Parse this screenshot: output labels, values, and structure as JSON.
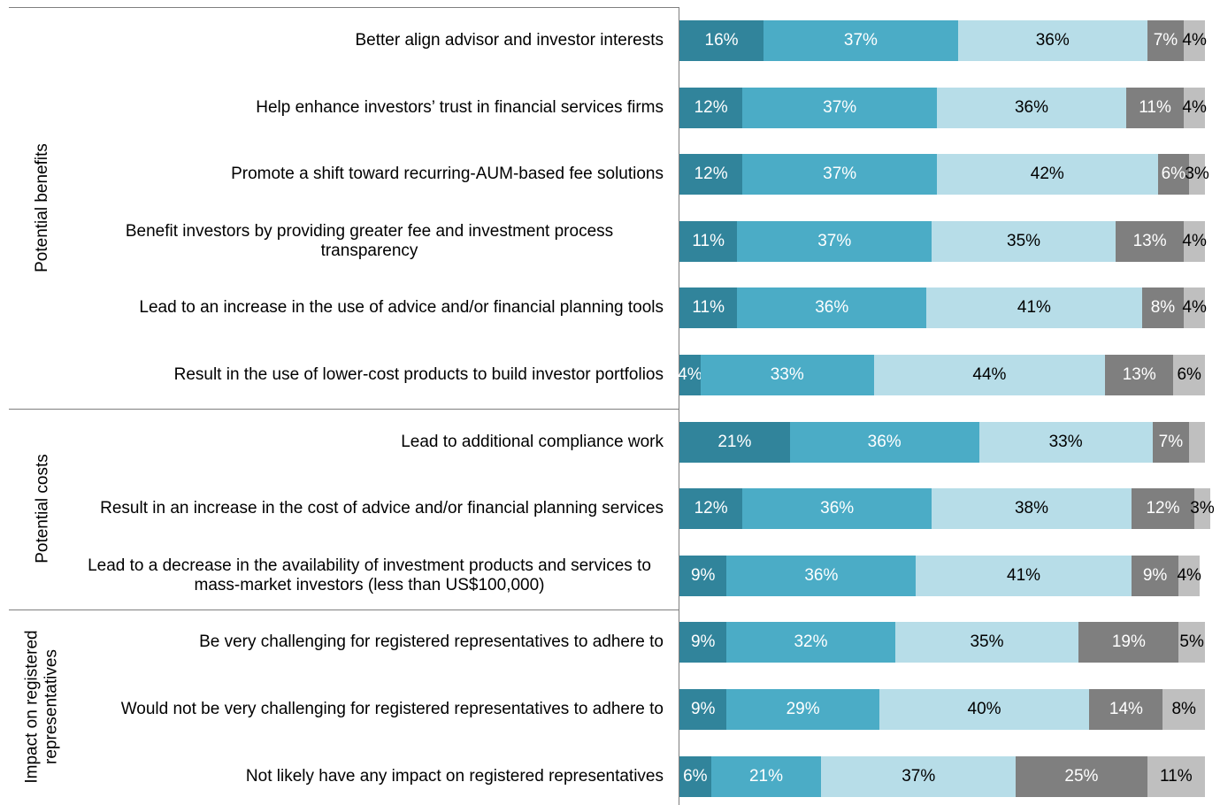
{
  "chart_data": {
    "type": "stacked-bar-horizontal",
    "groups": [
      {
        "label": "Potential benefits",
        "categories": [
          "Better align advisor and investor interests",
          "Help enhance investors’ trust in financial services firms",
          "Promote a shift toward recurring-AUM-based fee solutions",
          "Benefit investors by providing greater fee and investment process transparency",
          "Lead to an increase in the use of advice and/or financial planning tools",
          "Result in the use of lower-cost products to build investor portfolios"
        ]
      },
      {
        "label": "Potential costs",
        "categories": [
          "Lead to additional compliance work",
          "Result in an increase in the cost of advice and/or financial planning services",
          "Lead to a decrease in the availability of investment products and services to mass-market investors (less than US$100,000)"
        ]
      },
      {
        "label": "Impact on registered representatives",
        "categories": [
          "Be very challenging for registered representatives to adhere to",
          "Would not be very challenging for registered representatives to adhere to",
          "Not likely have any impact on registered representatives"
        ]
      }
    ],
    "xlim": [
      0,
      100
    ],
    "series": [
      {
        "color": "#31849b",
        "label_color": "#ffffff",
        "values": [
          16,
          12,
          12,
          11,
          11,
          4,
          21,
          12,
          9,
          9,
          9,
          6
        ],
        "value_labels": [
          "16%",
          "12%",
          "12%",
          "11%",
          "11%",
          "4%",
          "21%",
          "12%",
          "9%",
          "9%",
          "9%",
          "6%"
        ]
      },
      {
        "color": "#4bacc6",
        "label_color": "#ffffff",
        "values": [
          37,
          37,
          37,
          37,
          36,
          33,
          36,
          36,
          36,
          32,
          29,
          21
        ],
        "value_labels": [
          "37%",
          "37%",
          "37%",
          "37%",
          "36%",
          "33%",
          "36%",
          "36%",
          "36%",
          "32%",
          "29%",
          "21%"
        ]
      },
      {
        "color": "#b7dde8",
        "label_color": "#000000",
        "values": [
          36,
          36,
          42,
          35,
          41,
          44,
          33,
          38,
          41,
          35,
          40,
          37
        ],
        "value_labels": [
          "36%",
          "36%",
          "42%",
          "35%",
          "41%",
          "44%",
          "33%",
          "38%",
          "41%",
          "35%",
          "40%",
          "37%"
        ]
      },
      {
        "color": "#7f7f7f",
        "label_color": "#ffffff",
        "values": [
          7,
          11,
          6,
          13,
          8,
          13,
          7,
          12,
          9,
          19,
          14,
          25
        ],
        "value_labels": [
          "7%",
          "11%",
          "6%",
          "13%",
          "8%",
          "13%",
          "7%",
          "12%",
          "9%",
          "19%",
          "14%",
          "25%"
        ]
      },
      {
        "color": "#bfbfbf",
        "label_color": "#000000",
        "values": [
          4,
          4,
          3,
          4,
          4,
          6,
          3,
          3,
          4,
          5,
          8,
          11
        ],
        "value_labels": [
          "4%",
          "4%",
          "3%",
          "4%",
          "4%",
          "6%",
          null,
          "3%",
          "4%",
          "5%",
          "8%",
          "11%"
        ]
      }
    ]
  }
}
